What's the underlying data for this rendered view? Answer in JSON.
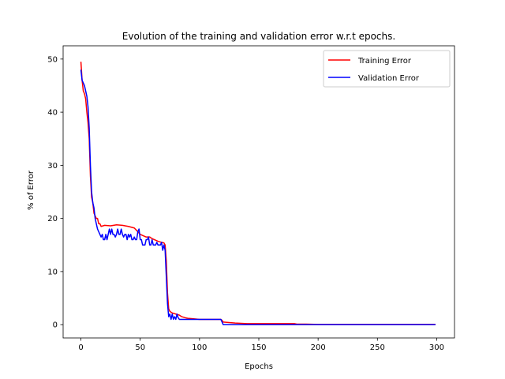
{
  "chart_data": {
    "type": "line",
    "title": "Evolution of the training and validation error w.r.t epochs.",
    "xlabel": "Epochs",
    "ylabel": "% of Error",
    "xlim": [
      -15,
      315
    ],
    "ylim": [
      -2.5,
      52.5
    ],
    "xticks": [
      0,
      50,
      100,
      150,
      200,
      250,
      300
    ],
    "yticks": [
      0,
      10,
      20,
      30,
      40,
      50
    ],
    "grid": false,
    "legend": "upper right",
    "series": [
      {
        "name": "Training Error",
        "color": "#ff0000",
        "points": [
          [
            0,
            49.5
          ],
          [
            1,
            46
          ],
          [
            2,
            44
          ],
          [
            3,
            43.5
          ],
          [
            4,
            42.5
          ],
          [
            5,
            40
          ],
          [
            6,
            38
          ],
          [
            7,
            35
          ],
          [
            8,
            28
          ],
          [
            9,
            24
          ],
          [
            10,
            23
          ],
          [
            11,
            21
          ],
          [
            12,
            20.5
          ],
          [
            13,
            20
          ],
          [
            14,
            20
          ],
          [
            15,
            19
          ],
          [
            16,
            19
          ],
          [
            17,
            18.5
          ],
          [
            20,
            18.7
          ],
          [
            25,
            18.6
          ],
          [
            30,
            18.8
          ],
          [
            35,
            18.7
          ],
          [
            40,
            18.5
          ],
          [
            45,
            18.2
          ],
          [
            48,
            17.5
          ],
          [
            50,
            17
          ],
          [
            52,
            16.8
          ],
          [
            55,
            16.5
          ],
          [
            58,
            16.5
          ],
          [
            60,
            16.2
          ],
          [
            62,
            16
          ],
          [
            65,
            15.7
          ],
          [
            68,
            15.5
          ],
          [
            70,
            15.4
          ],
          [
            71,
            15
          ],
          [
            72,
            12
          ],
          [
            73,
            6
          ],
          [
            74,
            3
          ],
          [
            75,
            2.5
          ],
          [
            77,
            2.2
          ],
          [
            80,
            2
          ],
          [
            83,
            1.8
          ],
          [
            85,
            1.5
          ],
          [
            88,
            1.3
          ],
          [
            90,
            1.2
          ],
          [
            95,
            1.1
          ],
          [
            100,
            1
          ],
          [
            110,
            1
          ],
          [
            118,
            1
          ],
          [
            119,
            0.8
          ],
          [
            120,
            0.5
          ],
          [
            125,
            0.4
          ],
          [
            130,
            0.3
          ],
          [
            140,
            0.2
          ],
          [
            150,
            0.2
          ],
          [
            160,
            0.2
          ],
          [
            170,
            0.2
          ],
          [
            180,
            0.2
          ],
          [
            182,
            0.1
          ],
          [
            190,
            0.1
          ],
          [
            200,
            0.05
          ],
          [
            250,
            0.05
          ],
          [
            299,
            0.05
          ]
        ]
      },
      {
        "name": "Validation Error",
        "color": "#0000ff",
        "points": [
          [
            0,
            48
          ],
          [
            1,
            46
          ],
          [
            2,
            45.5
          ],
          [
            3,
            45
          ],
          [
            4,
            44
          ],
          [
            5,
            43
          ],
          [
            6,
            41
          ],
          [
            7,
            37
          ],
          [
            8,
            30
          ],
          [
            9,
            25
          ],
          [
            10,
            23
          ],
          [
            11,
            22
          ],
          [
            12,
            20
          ],
          [
            13,
            19
          ],
          [
            14,
            18
          ],
          [
            15,
            17.5
          ],
          [
            16,
            17
          ],
          [
            17,
            16.5
          ],
          [
            18,
            17
          ],
          [
            19,
            16
          ],
          [
            20,
            16
          ],
          [
            21,
            17
          ],
          [
            22,
            16
          ],
          [
            23,
            17
          ],
          [
            24,
            18
          ],
          [
            25,
            17
          ],
          [
            26,
            18
          ],
          [
            27,
            17
          ],
          [
            28,
            17
          ],
          [
            29,
            16.5
          ],
          [
            30,
            17
          ],
          [
            31,
            18
          ],
          [
            32,
            17
          ],
          [
            33,
            17
          ],
          [
            34,
            18
          ],
          [
            35,
            17
          ],
          [
            36,
            16.5
          ],
          [
            37,
            17
          ],
          [
            38,
            17
          ],
          [
            39,
            16
          ],
          [
            40,
            17
          ],
          [
            41,
            16.5
          ],
          [
            42,
            17
          ],
          [
            43,
            16
          ],
          [
            44,
            16
          ],
          [
            45,
            16.5
          ],
          [
            46,
            16
          ],
          [
            47,
            16
          ],
          [
            48,
            17.5
          ],
          [
            49,
            18
          ],
          [
            50,
            16
          ],
          [
            51,
            16
          ],
          [
            52,
            15
          ],
          [
            53,
            15
          ],
          [
            54,
            15
          ],
          [
            55,
            16
          ],
          [
            56,
            16
          ],
          [
            57,
            16.5
          ],
          [
            58,
            15
          ],
          [
            59,
            15
          ],
          [
            60,
            16
          ],
          [
            61,
            15
          ],
          [
            62,
            15
          ],
          [
            63,
            15
          ],
          [
            64,
            15.5
          ],
          [
            65,
            15
          ],
          [
            66,
            15
          ],
          [
            67,
            15
          ],
          [
            68,
            15.5
          ],
          [
            69,
            14
          ],
          [
            70,
            15
          ],
          [
            71,
            14
          ],
          [
            72,
            9
          ],
          [
            73,
            4
          ],
          [
            74,
            1.5
          ],
          [
            75,
            2
          ],
          [
            76,
            1
          ],
          [
            77,
            2
          ],
          [
            78,
            1
          ],
          [
            79,
            1.5
          ],
          [
            80,
            1
          ],
          [
            81,
            2
          ],
          [
            82,
            1.3
          ],
          [
            83,
            1
          ],
          [
            85,
            1
          ],
          [
            90,
            1
          ],
          [
            100,
            1
          ],
          [
            110,
            1
          ],
          [
            118,
            1
          ],
          [
            119,
            0.5
          ],
          [
            120,
            0
          ],
          [
            150,
            0
          ],
          [
            200,
            0
          ],
          [
            250,
            0
          ],
          [
            299,
            0
          ]
        ]
      }
    ]
  }
}
